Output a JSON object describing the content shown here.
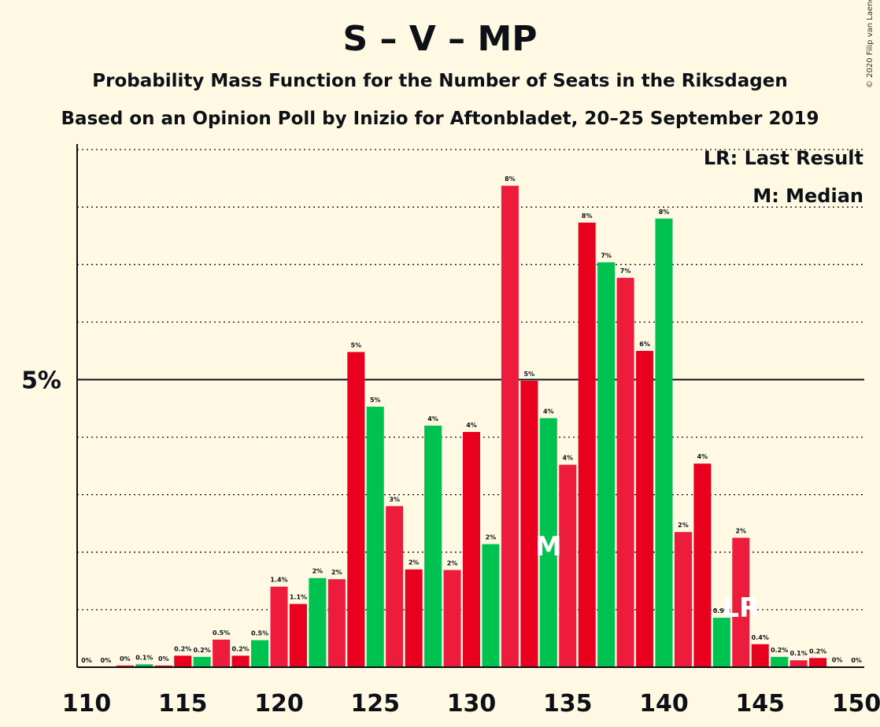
{
  "header": {
    "title": "S – V – MP",
    "subtitle_1": "Probability Mass Function for the Number of Seats in the Riksdagen",
    "subtitle_2": "Based on an Opinion Poll by Inizio for Aftonbladet, 20–25 September 2019",
    "copyright": "© 2020 Filip van Laenen"
  },
  "legend": {
    "last_result": "LR: Last Result",
    "median": "M: Median"
  },
  "chart_data": {
    "type": "bar",
    "title": "S – V – MP",
    "ylabel_tick": "5%",
    "xlim": [
      110,
      150
    ],
    "ylim": [
      0,
      9
    ],
    "x_ticks": [
      "110",
      "115",
      "120",
      "125",
      "130",
      "135",
      "140",
      "145",
      "150"
    ],
    "median_seat": 134,
    "median_marker": "M",
    "last_result_seat": 144,
    "last_result_marker": "LR",
    "colors": {
      "red": "#e8001e",
      "pink": "#ee1c3c",
      "green": "#00c250"
    },
    "bars": [
      {
        "seat": 110,
        "value": 0.0,
        "label": "0%",
        "color": "red"
      },
      {
        "seat": 111,
        "value": 0.0,
        "label": "0%",
        "color": "green"
      },
      {
        "seat": 112,
        "value": 0.03,
        "label": "0%",
        "color": "pink"
      },
      {
        "seat": 113,
        "value": 0.05,
        "label": "0.1%",
        "color": "green"
      },
      {
        "seat": 114,
        "value": 0.03,
        "label": "0%",
        "color": "pink"
      },
      {
        "seat": 115,
        "value": 0.2,
        "label": "0.2%",
        "color": "red"
      },
      {
        "seat": 116,
        "value": 0.18,
        "label": "0.2%",
        "color": "green"
      },
      {
        "seat": 117,
        "value": 0.48,
        "label": "0.5%",
        "color": "pink"
      },
      {
        "seat": 118,
        "value": 0.2,
        "label": "0.2%",
        "color": "red"
      },
      {
        "seat": 119,
        "value": 0.47,
        "label": "0.5%",
        "color": "green"
      },
      {
        "seat": 120,
        "value": 1.4,
        "label": "1.4%",
        "color": "pink"
      },
      {
        "seat": 121,
        "value": 1.1,
        "label": "1.1%",
        "color": "red"
      },
      {
        "seat": 122,
        "value": 1.55,
        "label": "2%",
        "color": "green"
      },
      {
        "seat": 123,
        "value": 1.53,
        "label": "2%",
        "color": "pink"
      },
      {
        "seat": 124,
        "value": 5.48,
        "label": "5%",
        "color": "red"
      },
      {
        "seat": 125,
        "value": 4.53,
        "label": "5%",
        "color": "green"
      },
      {
        "seat": 126,
        "value": 2.8,
        "label": "3%",
        "color": "pink"
      },
      {
        "seat": 127,
        "value": 1.7,
        "label": "2%",
        "color": "red"
      },
      {
        "seat": 128,
        "value": 4.2,
        "label": "4%",
        "color": "green"
      },
      {
        "seat": 129,
        "value": 1.69,
        "label": "2%",
        "color": "pink"
      },
      {
        "seat": 130,
        "value": 4.09,
        "label": "4%",
        "color": "red"
      },
      {
        "seat": 131,
        "value": 2.14,
        "label": "2%",
        "color": "green"
      },
      {
        "seat": 132,
        "value": 8.37,
        "label": "8%",
        "color": "pink"
      },
      {
        "seat": 133,
        "value": 4.98,
        "label": "5%",
        "color": "red"
      },
      {
        "seat": 134,
        "value": 4.33,
        "label": "4%",
        "color": "green"
      },
      {
        "seat": 135,
        "value": 3.52,
        "label": "4%",
        "color": "pink"
      },
      {
        "seat": 136,
        "value": 7.73,
        "label": "8%",
        "color": "red"
      },
      {
        "seat": 137,
        "value": 7.04,
        "label": "7%",
        "color": "green"
      },
      {
        "seat": 138,
        "value": 6.77,
        "label": "7%",
        "color": "pink"
      },
      {
        "seat": 139,
        "value": 5.5,
        "label": "6%",
        "color": "red"
      },
      {
        "seat": 140,
        "value": 7.8,
        "label": "8%",
        "color": "green"
      },
      {
        "seat": 141,
        "value": 2.35,
        "label": "2%",
        "color": "pink"
      },
      {
        "seat": 142,
        "value": 3.54,
        "label": "4%",
        "color": "red"
      },
      {
        "seat": 143,
        "value": 0.86,
        "label": "0.9%",
        "color": "green"
      },
      {
        "seat": 144,
        "value": 2.25,
        "label": "2%",
        "color": "pink"
      },
      {
        "seat": 145,
        "value": 0.4,
        "label": "0.4%",
        "color": "red"
      },
      {
        "seat": 146,
        "value": 0.18,
        "label": "0.2%",
        "color": "green"
      },
      {
        "seat": 147,
        "value": 0.12,
        "label": "0.1%",
        "color": "pink"
      },
      {
        "seat": 148,
        "value": 0.16,
        "label": "0.2%",
        "color": "red"
      },
      {
        "seat": 149,
        "value": 0.01,
        "label": "0%",
        "color": "green"
      },
      {
        "seat": 150,
        "value": 0.0,
        "label": "0%",
        "color": "pink"
      }
    ]
  }
}
